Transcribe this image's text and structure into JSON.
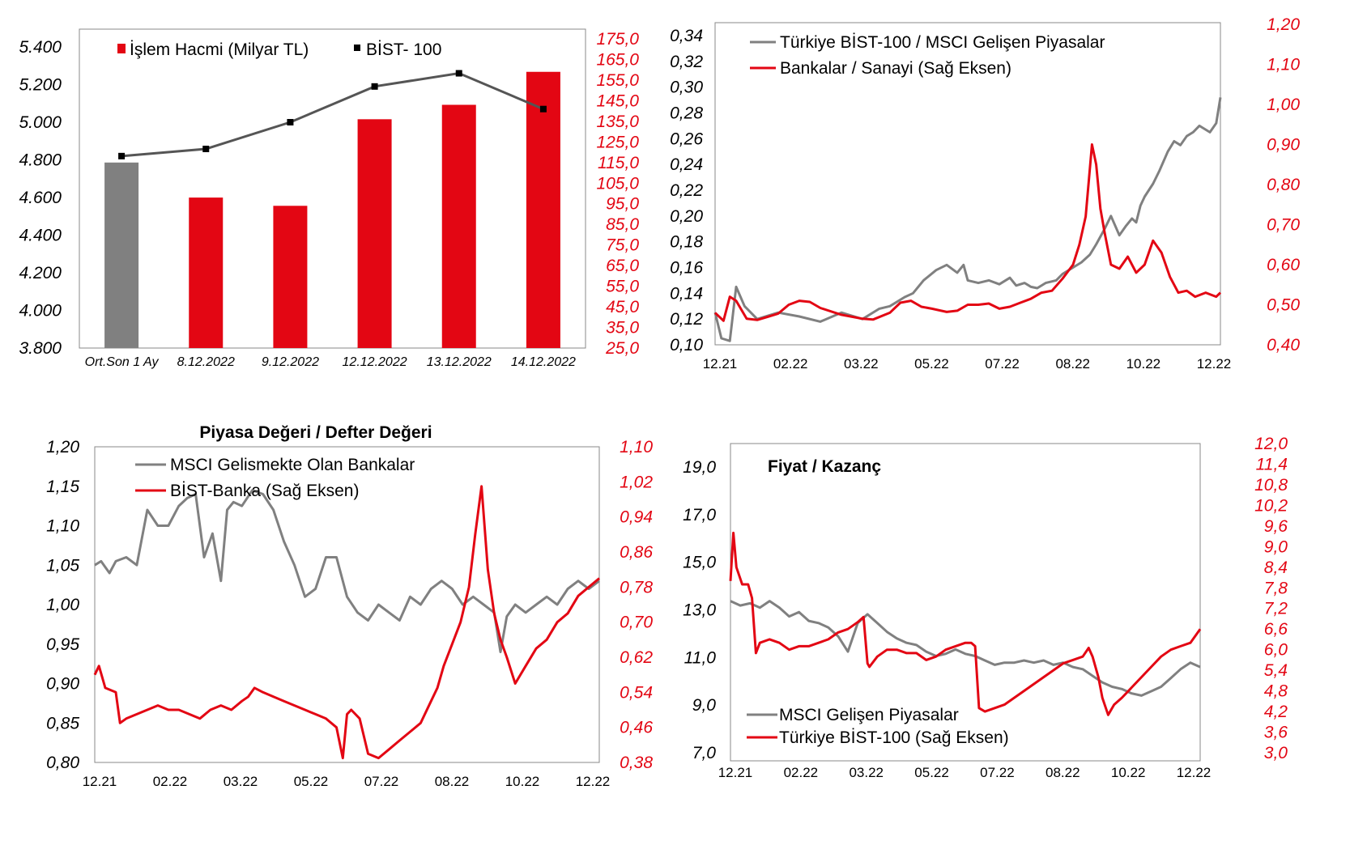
{
  "colors": {
    "grey": "#808080",
    "red": "#e30613",
    "line_dark": "#555555",
    "axis": "#888888"
  },
  "chart_data": [
    {
      "type": "bar",
      "title": "",
      "categories": [
        "Ort.Son 1 Ay",
        "8.12.2022",
        "9.12.2022",
        "12.12.2022",
        "13.12.2022",
        "14.12.2022"
      ],
      "series": [
        {
          "name": "İşlem Hacmi (Milyar TL)",
          "axis": "right",
          "values": [
            115,
            98,
            94,
            136,
            143,
            159
          ]
        },
        {
          "name": "BİST- 100",
          "axis": "left",
          "kind": "line",
          "values": [
            4820,
            4858,
            5000,
            5190,
            5260,
            5070
          ]
        }
      ],
      "ylim_left": [
        3800,
        5400
      ],
      "ylim_right": [
        25,
        175
      ],
      "yticks_left": [
        "3.800",
        "4.000",
        "4.200",
        "4.400",
        "4.600",
        "4.800",
        "5.000",
        "5.200",
        "5.400"
      ],
      "yticks_right": [
        "25,0",
        "35,0",
        "45,0",
        "55,0",
        "65,0",
        "75,0",
        "85,0",
        "95,0",
        "105,0",
        "115,0",
        "125,0",
        "135,0",
        "145,0",
        "155,0",
        "165,0",
        "175,0"
      ],
      "legend_position": "top"
    },
    {
      "type": "line",
      "title": "",
      "x_ticks": [
        "12.21",
        "02.22",
        "03.22",
        "05.22",
        "07.22",
        "08.22",
        "10.22",
        "12.22"
      ],
      "series": [
        {
          "name": "Türkiye BİST-100 / MSCI Gelişen Piyasalar",
          "axis": "left",
          "x": [
            0,
            0.3,
            0.7,
            1.0,
            1.4,
            2,
            3,
            4,
            5,
            6,
            7,
            7.8,
            8.3,
            9,
            9.4,
            9.9,
            10.5,
            11,
            11.5,
            11.8,
            12,
            12.5,
            13,
            13.5,
            14,
            14.3,
            14.7,
            15,
            15.3,
            15.7,
            16.2,
            16.5,
            17,
            17.4,
            17.8,
            18.1,
            18.5,
            18.8,
            19.2,
            19.5,
            19.8,
            20,
            20.2,
            20.4,
            20.8,
            21.1,
            21.5,
            21.8,
            22.1,
            22.4,
            22.7,
            23,
            23.5,
            23.8,
            24
          ],
          "values": [
            0.125,
            0.105,
            0.103,
            0.145,
            0.13,
            0.12,
            0.125,
            0.122,
            0.118,
            0.125,
            0.12,
            0.128,
            0.13,
            0.137,
            0.14,
            0.15,
            0.158,
            0.162,
            0.156,
            0.162,
            0.15,
            0.148,
            0.15,
            0.147,
            0.152,
            0.146,
            0.148,
            0.145,
            0.144,
            0.148,
            0.15,
            0.155,
            0.16,
            0.164,
            0.17,
            0.178,
            0.19,
            0.2,
            0.185,
            0.192,
            0.198,
            0.195,
            0.208,
            0.215,
            0.225,
            0.235,
            0.25,
            0.258,
            0.255,
            0.262,
            0.265,
            0.27,
            0.265,
            0.272,
            0.292
          ]
        },
        {
          "name": "Bankalar / Sanayi (Sağ Eksen)",
          "axis": "right",
          "x": [
            0,
            0.4,
            0.7,
            1.0,
            1.5,
            2,
            2.5,
            3,
            3.5,
            4,
            4.5,
            5,
            6,
            7,
            7.5,
            8.3,
            8.8,
            9.3,
            9.8,
            10.3,
            11,
            11.5,
            12,
            12.5,
            13,
            13.5,
            14,
            14.5,
            15,
            15.5,
            16,
            16.5,
            17,
            17.3,
            17.6,
            17.9,
            18.1,
            18.3,
            18.5,
            18.8,
            19.2,
            19.6,
            20,
            20.4,
            20.8,
            21.2,
            21.6,
            22,
            22.4,
            22.8,
            23.3,
            23.8,
            24
          ],
          "values": [
            0.48,
            0.46,
            0.52,
            0.51,
            0.465,
            0.462,
            0.47,
            0.478,
            0.5,
            0.51,
            0.507,
            0.492,
            0.475,
            0.465,
            0.463,
            0.48,
            0.505,
            0.51,
            0.495,
            0.49,
            0.482,
            0.485,
            0.5,
            0.5,
            0.503,
            0.49,
            0.495,
            0.505,
            0.515,
            0.53,
            0.535,
            0.565,
            0.6,
            0.65,
            0.72,
            0.9,
            0.85,
            0.74,
            0.68,
            0.6,
            0.59,
            0.62,
            0.58,
            0.6,
            0.66,
            0.63,
            0.57,
            0.53,
            0.535,
            0.52,
            0.53,
            0.52,
            0.53
          ]
        }
      ],
      "ylim_left": [
        0.1,
        0.34
      ],
      "ylim_right": [
        0.4,
        1.2
      ],
      "yticks_left": [
        "0,10",
        "0,12",
        "0,14",
        "0,16",
        "0,18",
        "0,20",
        "0,22",
        "0,24",
        "0,26",
        "0,28",
        "0,30",
        "0,32",
        "0,34"
      ],
      "yticks_right": [
        "0,40",
        "0,50",
        "0,60",
        "0,70",
        "0,80",
        "0,90",
        "1,00",
        "1,10",
        "1,20"
      ],
      "legend_position": "top-left"
    },
    {
      "type": "line",
      "title": "Piyasa Değeri / Defter Değeri",
      "x_ticks": [
        "12.21",
        "02.22",
        "03.22",
        "05.22",
        "07.22",
        "08.22",
        "10.22",
        "12.22"
      ],
      "series": [
        {
          "name": "MSCI Gelismekte Olan Bankalar",
          "axis": "left",
          "x": [
            0,
            0.3,
            0.7,
            1.0,
            1.5,
            2,
            2.5,
            3,
            3.5,
            4,
            4.4,
            4.8,
            5.2,
            5.6,
            6,
            6.3,
            6.6,
            7,
            7.5,
            8,
            8.5,
            9,
            9.5,
            10,
            10.5,
            11,
            11.5,
            12,
            12.5,
            13,
            13.5,
            14,
            14.5,
            15,
            15.5,
            16,
            16.5,
            17,
            17.5,
            18,
            18.5,
            19,
            19.3,
            19.6,
            20,
            20.5,
            21,
            21.5,
            22,
            22.5,
            23,
            23.5,
            24
          ],
          "values": [
            1.05,
            1.055,
            1.04,
            1.055,
            1.06,
            1.05,
            1.12,
            1.1,
            1.1,
            1.125,
            1.135,
            1.14,
            1.06,
            1.09,
            1.03,
            1.12,
            1.13,
            1.125,
            1.145,
            1.14,
            1.12,
            1.08,
            1.05,
            1.01,
            1.02,
            1.06,
            1.06,
            1.01,
            0.99,
            0.98,
            1.0,
            0.99,
            0.98,
            1.01,
            1.0,
            1.02,
            1.03,
            1.02,
            1.0,
            1.01,
            1.0,
            0.99,
            0.94,
            0.985,
            1.0,
            0.99,
            1.0,
            1.01,
            1.0,
            1.02,
            1.03,
            1.02,
            1.03
          ]
        },
        {
          "name": "BİST-Banka (Sağ Eksen)",
          "axis": "right",
          "x": [
            0,
            0.2,
            0.5,
            1.0,
            1.2,
            1.5,
            2,
            2.5,
            3,
            3.5,
            4,
            4.5,
            5,
            5.5,
            6,
            6.5,
            7,
            7.3,
            7.6,
            8,
            8.5,
            9,
            9.5,
            10,
            10.5,
            11,
            11.5,
            11.8,
            12,
            12.2,
            12.6,
            13,
            13.5,
            14,
            14.5,
            15,
            15.5,
            16,
            16.3,
            16.6,
            17,
            17.4,
            17.8,
            18.1,
            18.4,
            18.7,
            19,
            19.3,
            19.6,
            20,
            20.5,
            21,
            21.5,
            22,
            22.5,
            23,
            23.5,
            24
          ],
          "values": [
            0.58,
            0.6,
            0.55,
            0.54,
            0.47,
            0.48,
            0.49,
            0.5,
            0.51,
            0.5,
            0.5,
            0.49,
            0.48,
            0.5,
            0.51,
            0.5,
            0.52,
            0.53,
            0.55,
            0.54,
            0.53,
            0.52,
            0.51,
            0.5,
            0.49,
            0.48,
            0.46,
            0.39,
            0.49,
            0.5,
            0.48,
            0.4,
            0.39,
            0.41,
            0.43,
            0.45,
            0.47,
            0.52,
            0.55,
            0.6,
            0.65,
            0.7,
            0.78,
            0.9,
            1.01,
            0.82,
            0.72,
            0.66,
            0.62,
            0.56,
            0.6,
            0.64,
            0.66,
            0.7,
            0.72,
            0.76,
            0.78,
            0.8
          ]
        }
      ],
      "ylim_left": [
        0.8,
        1.2
      ],
      "ylim_right": [
        0.38,
        1.1
      ],
      "yticks_left": [
        "0,80",
        "0,85",
        "0,90",
        "0,95",
        "1,00",
        "1,05",
        "1,10",
        "1,15",
        "1,20"
      ],
      "yticks_right": [
        "0,38",
        "0,46",
        "0,54",
        "0,62",
        "0,70",
        "0,78",
        "0,86",
        "0,94",
        "1,02",
        "1,10"
      ],
      "legend_position": "top-left"
    },
    {
      "type": "line",
      "title": "Fiyat / Kazanç",
      "x_ticks": [
        "12.21",
        "02.22",
        "03.22",
        "05.22",
        "07.22",
        "08.22",
        "10.22",
        "12.22"
      ],
      "series": [
        {
          "name": "MSCI Gelişen Piyasalar",
          "axis": "left",
          "x": [
            0,
            0.5,
            1,
            1.5,
            2,
            2.5,
            3,
            3.5,
            4,
            4.5,
            5,
            5.5,
            6,
            6.5,
            7,
            7.5,
            8,
            8.5,
            9,
            9.5,
            10,
            10.5,
            11,
            11.5,
            12,
            12.5,
            13,
            13.5,
            14,
            14.5,
            15,
            15.5,
            16,
            16.5,
            17,
            17.5,
            18,
            18.5,
            19,
            19.5,
            20,
            20.5,
            21,
            21.5,
            22,
            22.5,
            23,
            23.5,
            24
          ],
          "values": [
            13.9,
            13.7,
            13.8,
            13.6,
            13.9,
            13.6,
            13.2,
            13.4,
            13.0,
            12.9,
            12.7,
            12.3,
            11.6,
            12.9,
            13.3,
            12.9,
            12.5,
            12.2,
            12.0,
            11.9,
            11.6,
            11.4,
            11.5,
            11.7,
            11.5,
            11.4,
            11.2,
            11.0,
            11.1,
            11.1,
            11.2,
            11.1,
            11.2,
            11.0,
            11.1,
            10.9,
            10.8,
            10.5,
            10.2,
            10.0,
            9.9,
            9.7,
            9.6,
            9.8,
            10.0,
            10.4,
            10.8,
            11.1,
            10.9
          ]
        },
        {
          "name": "Türkiye BİST-100 (Sağ Eksen)",
          "axis": "right",
          "x": [
            0,
            0.15,
            0.3,
            0.6,
            0.9,
            1.1,
            1.3,
            1.5,
            2,
            2.5,
            3,
            3.5,
            4,
            4.5,
            5,
            5.5,
            6,
            6.5,
            6.8,
            7.0,
            7.1,
            7.5,
            8,
            8.5,
            9,
            9.5,
            10,
            10.5,
            11,
            11.5,
            12,
            12.3,
            12.5,
            12.7,
            13,
            13.5,
            14,
            14.5,
            15,
            15.5,
            16,
            16.5,
            17,
            17.5,
            18,
            18.3,
            18.5,
            18.8,
            19,
            19.3,
            19.6,
            20,
            20.5,
            21,
            21.5,
            22,
            22.5,
            23,
            23.5,
            24
          ],
          "values": [
            8.0,
            9.4,
            8.4,
            7.9,
            7.9,
            7.5,
            5.9,
            6.2,
            6.3,
            6.2,
            6.0,
            6.1,
            6.1,
            6.2,
            6.3,
            6.5,
            6.6,
            6.8,
            6.95,
            5.6,
            5.5,
            5.8,
            6.0,
            6.0,
            5.9,
            5.9,
            5.7,
            5.8,
            6.0,
            6.1,
            6.2,
            6.2,
            6.1,
            4.3,
            4.2,
            4.3,
            4.4,
            4.6,
            4.8,
            5.0,
            5.2,
            5.4,
            5.6,
            5.7,
            5.8,
            6.05,
            5.8,
            5.2,
            4.6,
            4.1,
            4.4,
            4.6,
            4.9,
            5.2,
            5.5,
            5.8,
            6.0,
            6.1,
            6.2,
            6.6
          ]
        }
      ],
      "ylim_left": [
        7.0,
        20.0
      ],
      "ylim_right": [
        3.0,
        12.0
      ],
      "yticks_left": [
        "7,0",
        "9,0",
        "11,0",
        "13,0",
        "15,0",
        "17,0",
        "19,0"
      ],
      "yticks_right": [
        "3,0",
        "3,6",
        "4,2",
        "4,8",
        "5,4",
        "6,0",
        "6,6",
        "7,2",
        "7,8",
        "8,4",
        "9,0",
        "9,6",
        "10,2",
        "10,8",
        "11,4",
        "12,0"
      ],
      "legend_position": "bottom-left"
    }
  ]
}
